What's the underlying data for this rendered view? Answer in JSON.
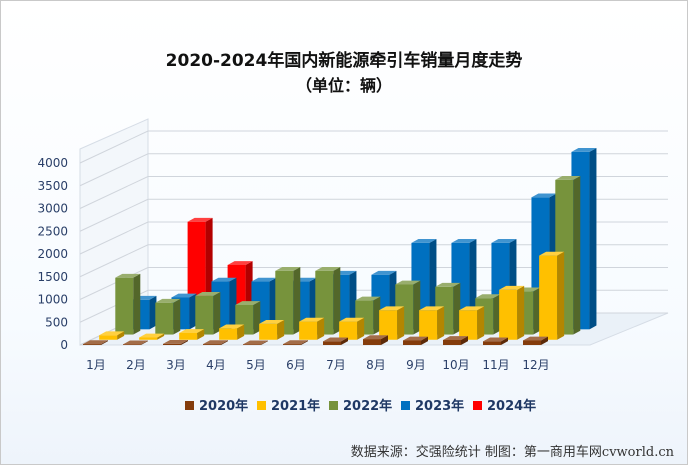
{
  "chart_data": {
    "type": "bar",
    "title": "2020-2024年国内新能源牵引车销量月度走势",
    "subtitle": "（单位：辆）",
    "categories": [
      "1月",
      "2月",
      "3月",
      "4月",
      "5月",
      "6月",
      "7月",
      "8月",
      "9月",
      "10月",
      "11月",
      "12月"
    ],
    "series": [
      {
        "name": "2020年",
        "color": "#843c0c",
        "values": [
          20,
          15,
          25,
          20,
          15,
          20,
          80,
          130,
          100,
          110,
          80,
          100
        ]
      },
      {
        "name": "2021年",
        "color": "#ffc000",
        "values": [
          100,
          50,
          150,
          250,
          350,
          400,
          400,
          650,
          650,
          650,
          1100,
          1850
        ]
      },
      {
        "name": "2022年",
        "color": "#77933c",
        "values": [
          1250,
          700,
          850,
          650,
          1400,
          1400,
          750,
          1100,
          1050,
          800,
          950,
          3400
        ]
      },
      {
        "name": "2023年",
        "color": "#0070c0",
        "values": [
          650,
          700,
          1050,
          1050,
          1050,
          1200,
          1200,
          1900,
          1900,
          1900,
          2900,
          3900
        ]
      },
      {
        "name": "2024年",
        "color": "#ff0000",
        "values": [
          null,
          2250,
          1300,
          null,
          null,
          null,
          null,
          null,
          null,
          null,
          null,
          null
        ]
      }
    ],
    "yticks": [
      0,
      500,
      1000,
      1500,
      2000,
      2500,
      3000,
      3500,
      4000
    ],
    "ylim": [
      0,
      4000
    ],
    "legend_position": "bottom",
    "grid": true
  },
  "source_text": "数据来源：交强险统计  制图：第一商用车网cvworld.cn"
}
